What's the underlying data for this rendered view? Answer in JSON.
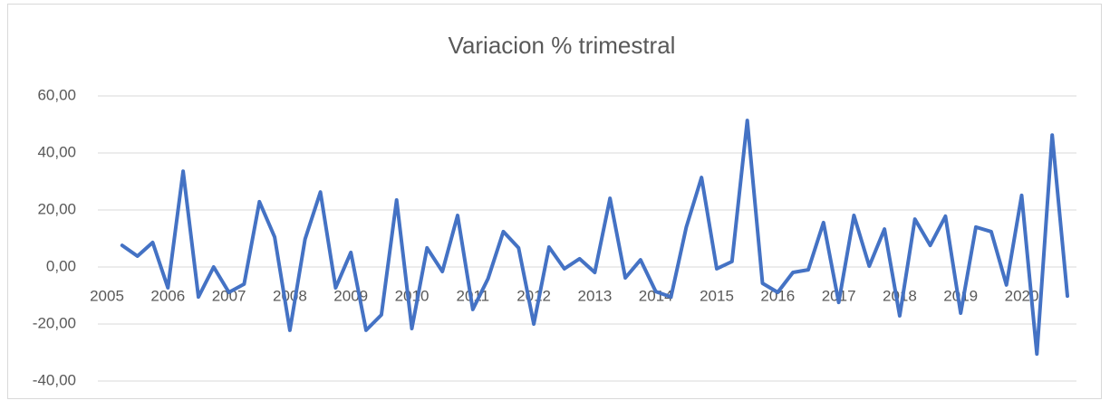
{
  "chart_data": {
    "type": "line",
    "title": "Variacion %  trimestral",
    "categories": [
      "2005",
      null,
      null,
      null,
      "2006",
      null,
      null,
      null,
      "2007",
      null,
      null,
      null,
      "2008",
      null,
      null,
      null,
      "2009",
      null,
      null,
      null,
      "2010",
      null,
      null,
      null,
      "2011",
      null,
      null,
      null,
      "2012",
      null,
      null,
      null,
      "2013",
      null,
      null,
      null,
      "2014",
      null,
      null,
      null,
      "2015",
      null,
      null,
      null,
      "2016",
      null,
      null,
      null,
      "2017",
      null,
      null,
      null,
      "2018",
      null,
      null,
      null,
      "2019",
      null,
      null,
      null,
      "2020",
      null,
      null,
      null
    ],
    "values": [
      null,
      7.6,
      3.8,
      8.6,
      -7.3,
      33.6,
      -10.5,
      0,
      -8.9,
      -6,
      22.9,
      10.5,
      -22.2,
      9.8,
      26.3,
      -7.3,
      5.1,
      -22.2,
      -16.8,
      23.5,
      -21.6,
      6.7,
      -1.6,
      18.1,
      -14.9,
      -4.1,
      12.4,
      6.7,
      -20,
      7,
      -0.6,
      2.9,
      -1.9,
      24.1,
      -3.8,
      2.5,
      -8.6,
      -10.5,
      14,
      31.4,
      -0.6,
      1.9,
      51.4,
      -5.7,
      -8.9,
      -1.9,
      -1,
      15.6,
      -12.4,
      18.1,
      0.3,
      13.3,
      -17.1,
      16.8,
      7.6,
      17.8,
      -16.2,
      14,
      12.4,
      -6.3,
      25.1,
      -30.5,
      46.3,
      -10.2
    ],
    "color": "#4472c4",
    "ylim": [
      -40,
      60
    ],
    "yticks": [
      {
        "value": -40,
        "label": "-40,00"
      },
      {
        "value": -20,
        "label": "-20,00"
      },
      {
        "value": 0,
        "label": "0,00"
      },
      {
        "value": 20,
        "label": "20,00"
      },
      {
        "value": 40,
        "label": "40,00"
      },
      {
        "value": 60,
        "label": "60,00"
      }
    ],
    "grid": true
  }
}
